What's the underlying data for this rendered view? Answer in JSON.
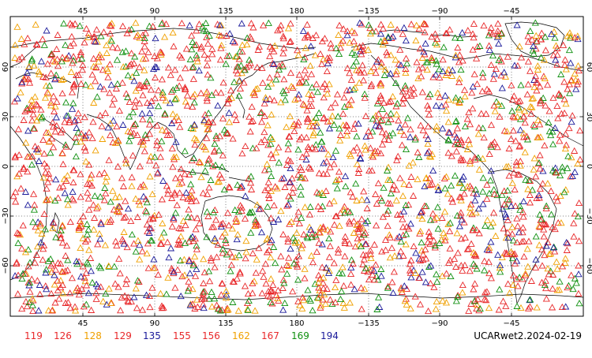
{
  "map": {
    "top_lon_labels": [
      "45",
      "90",
      "135",
      "180",
      "−135",
      "−90",
      "−45"
    ],
    "bottom_lon_labels": [
      "45",
      "90",
      "135",
      "180",
      "−135",
      "−90",
      "−45"
    ],
    "left_lat_labels": [
      "60",
      "30",
      "0",
      "−30",
      "−60"
    ],
    "right_lat_labels": [
      "60",
      "30",
      "0",
      "−30",
      "−60"
    ]
  },
  "legend": [
    {
      "label": "119",
      "color": "#e8282a"
    },
    {
      "label": "126",
      "color": "#e8282a"
    },
    {
      "label": "128",
      "color": "#f0a000"
    },
    {
      "label": "129",
      "color": "#e8282a"
    },
    {
      "label": "135",
      "color": "#1a1a9a"
    },
    {
      "label": "155",
      "color": "#e8282a"
    },
    {
      "label": "156",
      "color": "#e8282a"
    },
    {
      "label": "162",
      "color": "#f0a000"
    },
    {
      "label": "167",
      "color": "#e8282a"
    },
    {
      "label": "169",
      "color": "#109010"
    },
    {
      "label": "194",
      "color": "#1a1a9a"
    }
  ],
  "footer": {
    "dataset_label": "UCARwet2.2024-02-19"
  },
  "colors": {
    "red": "#e8282a",
    "orange": "#f0a000",
    "green": "#109010",
    "blue": "#1a1a9a",
    "coastline": "#000000",
    "frame": "#000000"
  },
  "marker_icon": "triangle-icon"
}
